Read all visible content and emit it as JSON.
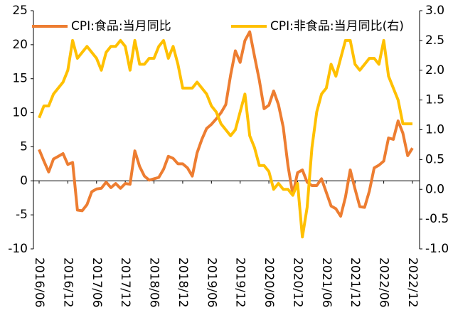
{
  "chart_data": {
    "type": "line",
    "categories": [
      "2016/06",
      null,
      null,
      null,
      null,
      null,
      "2016/12",
      null,
      null,
      null,
      null,
      null,
      "2017/06",
      null,
      null,
      null,
      null,
      null,
      "2017/12",
      null,
      null,
      null,
      null,
      null,
      "2018/06",
      null,
      null,
      null,
      null,
      null,
      "2018/12",
      null,
      null,
      null,
      null,
      null,
      "2019/06",
      null,
      null,
      null,
      null,
      null,
      "2019/12",
      null,
      null,
      null,
      null,
      null,
      "2020/06",
      null,
      null,
      null,
      null,
      null,
      "2020/12",
      null,
      null,
      null,
      null,
      null,
      "2021/06",
      null,
      null,
      null,
      null,
      null,
      "2021/12",
      null,
      null,
      null,
      null,
      null,
      "2022/06",
      null,
      null,
      null,
      null,
      null,
      "2022/12"
    ],
    "series": [
      {
        "name": "CPI:食品:当月同比",
        "color": "#ed7d31",
        "axis": "y",
        "values": [
          4.6,
          2.9,
          1.3,
          3.2,
          3.6,
          4.0,
          2.4,
          2.7,
          -4.3,
          -4.4,
          -3.5,
          -1.6,
          -1.2,
          -1.1,
          -0.2,
          -1.0,
          -0.4,
          -1.1,
          -0.4,
          -0.5,
          4.4,
          2.1,
          0.7,
          0.1,
          0.3,
          0.5,
          1.7,
          3.6,
          3.3,
          2.5,
          2.5,
          1.9,
          0.7,
          4.1,
          6.1,
          7.7,
          8.3,
          9.1,
          10.0,
          11.2,
          15.5,
          19.1,
          17.4,
          20.6,
          21.9,
          18.3,
          14.8,
          10.6,
          11.1,
          13.2,
          11.2,
          7.9,
          2.2,
          -2.0,
          1.2,
          1.6,
          -0.2,
          -0.7,
          -0.7,
          0.3,
          -1.7,
          -3.7,
          -4.1,
          -5.2,
          -2.4,
          1.6,
          -1.2,
          -3.8,
          -3.9,
          -1.5,
          1.9,
          2.3,
          2.9,
          6.3,
          6.1,
          8.8,
          7.0,
          3.7,
          4.8
        ]
      },
      {
        "name": "CPI:非食品:当月同比(右)",
        "color": "#ffc000",
        "axis": "y2",
        "values": [
          1.2,
          1.4,
          1.4,
          1.6,
          1.7,
          1.8,
          2.0,
          2.5,
          2.2,
          2.3,
          2.4,
          2.3,
          2.2,
          2.0,
          2.3,
          2.4,
          2.4,
          2.5,
          2.4,
          2.0,
          2.5,
          2.1,
          2.1,
          2.2,
          2.2,
          2.4,
          2.5,
          2.2,
          2.4,
          2.1,
          1.7,
          1.7,
          1.7,
          1.8,
          1.7,
          1.6,
          1.4,
          1.3,
          1.1,
          1.0,
          0.9,
          1.0,
          1.3,
          1.6,
          0.9,
          0.7,
          0.4,
          0.4,
          0.3,
          0.0,
          0.1,
          0.0,
          0.0,
          -0.1,
          0.1,
          -0.8,
          -0.3,
          0.7,
          1.3,
          1.6,
          1.7,
          2.1,
          1.9,
          2.2,
          2.5,
          2.5,
          2.1,
          2.0,
          2.1,
          2.2,
          2.2,
          2.1,
          2.5,
          1.9,
          1.7,
          1.5,
          1.1,
          1.1,
          1.1
        ]
      }
    ],
    "ylim": [
      -10,
      25
    ],
    "yticks": [
      -10,
      -5,
      0,
      5,
      10,
      15,
      20,
      25
    ],
    "y2lim": [
      -1,
      3
    ],
    "y2ticks": [
      {
        "value": -1,
        "label": "-1.0"
      },
      -0.5,
      {
        "value": 0,
        "label": "0.0"
      },
      0.5,
      {
        "value": 1,
        "label": "1.0"
      },
      1.5,
      {
        "value": 2,
        "label": "2.0"
      },
      2.5,
      {
        "value": 3,
        "label": "3.0"
      }
    ],
    "legend": "top",
    "grid": false
  }
}
